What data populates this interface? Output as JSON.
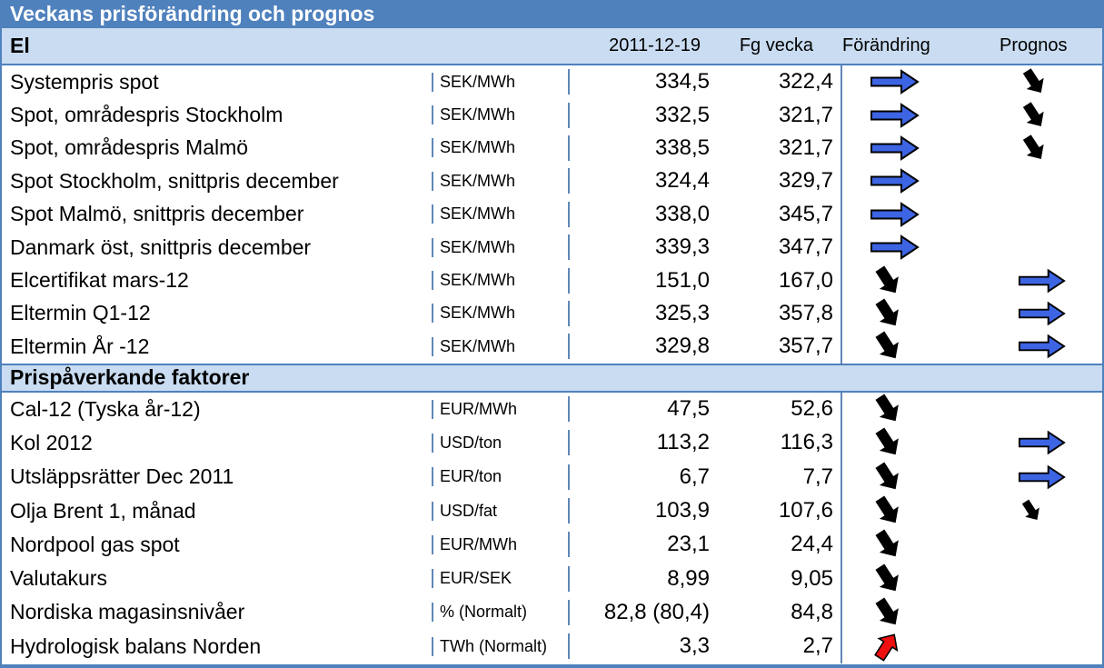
{
  "title": "Veckans prisförändring och prognos",
  "columns": {
    "date": "2011-12-19",
    "prev_week": "Fg vecka",
    "change": "Förändring",
    "forecast": "Prognos"
  },
  "colors": {
    "header_bg": "#4f81bd",
    "band_bg": "#c9dcf1",
    "border": "#5f87b8",
    "arrow_blue": "#3d65e3",
    "arrow_red": "#ee1010",
    "arrow_black": "#000000"
  },
  "icons": {
    "right": "right-arrow-icon",
    "down": "down-arrow-icon",
    "down-small": "down-small-arrow-icon",
    "up": "up-arrow-icon"
  },
  "sections": [
    {
      "name": "El",
      "rows": [
        {
          "label": "Systempris spot",
          "unit": "SEK/MWh",
          "current": "334,5",
          "previous": "322,4",
          "change": "right",
          "forecast": "down"
        },
        {
          "label": "Spot, områdespris Stockholm",
          "unit": "SEK/MWh",
          "current": "332,5",
          "previous": "321,7",
          "change": "right",
          "forecast": "down"
        },
        {
          "label": "Spot, områdespris Malmö",
          "unit": "SEK/MWh",
          "current": "338,5",
          "previous": "321,7",
          "change": "right",
          "forecast": "down"
        },
        {
          "label": "Spot Stockholm, snittpris december",
          "unit": "SEK/MWh",
          "current": "324,4",
          "previous": "329,7",
          "change": "right",
          "forecast": "none"
        },
        {
          "label": "Spot Malmö, snittpris december",
          "unit": "SEK/MWh",
          "current": "338,0",
          "previous": "345,7",
          "change": "right",
          "forecast": "none"
        },
        {
          "label": "Danmark öst, snittpris december",
          "unit": "SEK/MWh",
          "current": "339,3",
          "previous": "347,7",
          "change": "right",
          "forecast": "none"
        },
        {
          "label": "Elcertifikat mars-12",
          "unit": "SEK/MWh",
          "current": "151,0",
          "previous": "167,0",
          "change": "down",
          "forecast": "right"
        },
        {
          "label": "Eltermin Q1-12",
          "unit": "SEK/MWh",
          "current": "325,3",
          "previous": "357,8",
          "change": "down",
          "forecast": "right"
        },
        {
          "label": "Eltermin År -12",
          "unit": "SEK/MWh",
          "current": "329,8",
          "previous": "357,7",
          "change": "down",
          "forecast": "right"
        }
      ]
    },
    {
      "name": "Prispåverkande faktorer",
      "rows": [
        {
          "label": "Cal-12 (Tyska år-12)",
          "unit": "EUR/MWh",
          "current": "47,5",
          "previous": "52,6",
          "change": "down",
          "forecast": "none"
        },
        {
          "label": "Kol 2012",
          "unit": "USD/ton",
          "current": "113,2",
          "previous": "116,3",
          "change": "down",
          "forecast": "right"
        },
        {
          "label": "Utsläppsrätter Dec 2011",
          "unit": "EUR/ton",
          "current": "6,7",
          "previous": "7,7",
          "change": "down",
          "forecast": "right"
        },
        {
          "label": "Olja Brent 1, månad",
          "unit": "USD/fat",
          "current": "103,9",
          "previous": "107,6",
          "change": "down",
          "forecast": "down-small"
        },
        {
          "label": "Nordpool gas spot",
          "unit": "EUR/MWh",
          "current": "23,1",
          "previous": "24,4",
          "change": "down",
          "forecast": "none"
        },
        {
          "label": "Valutakurs",
          "unit": "EUR/SEK",
          "current": "8,99",
          "previous": "9,05",
          "change": "down",
          "forecast": "none"
        },
        {
          "label": "Nordiska magasinsnivåer",
          "unit": "% (Normalt)",
          "current": "82,8 (80,4)",
          "previous": "84,8",
          "change": "down",
          "forecast": "none"
        },
        {
          "label": "Hydrologisk balans Norden",
          "unit": "TWh (Normalt)",
          "current": "3,3",
          "previous": "2,7",
          "change": "up",
          "forecast": "none"
        }
      ]
    }
  ]
}
